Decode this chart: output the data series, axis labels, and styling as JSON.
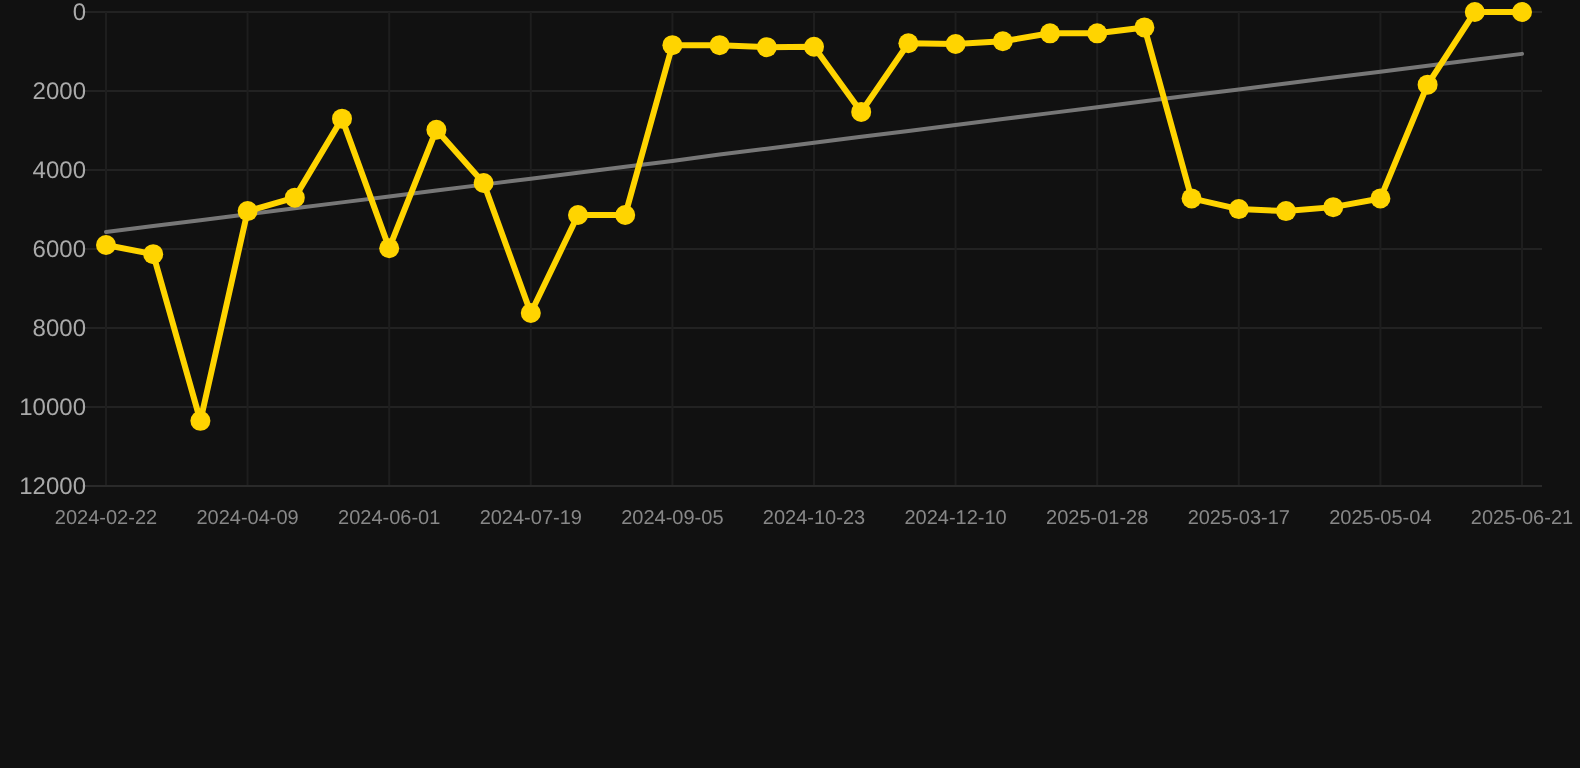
{
  "chart_data": {
    "type": "line",
    "categories": [
      "2024-02-22",
      null,
      null,
      "2024-04-09",
      null,
      null,
      "2024-06-01",
      null,
      null,
      "2024-07-19",
      null,
      null,
      "2024-09-05",
      null,
      null,
      "2024-10-23",
      null,
      null,
      "2024-12-10",
      null,
      null,
      "2025-01-28",
      null,
      null,
      "2025-03-17",
      null,
      null,
      "2025-05-04",
      null,
      null,
      "2025-06-21"
    ],
    "series": [
      {
        "color": "#ffd400",
        "marker": "circle",
        "values": [
          5900,
          6130,
          10350,
          5040,
          4700,
          2700,
          5980,
          2980,
          4330,
          7620,
          5140,
          5140,
          840,
          840,
          890,
          880,
          2530,
          790,
          810,
          740,
          540,
          540,
          390,
          4720,
          4990,
          5040,
          4940,
          4720,
          1840,
          0,
          0
        ]
      },
      {
        "type": "line",
        "color": "#777777",
        "marker": "none",
        "values": [
          5570,
          5420,
          5270,
          5120,
          4970,
          4820,
          4670,
          4520,
          4370,
          4220,
          4070,
          3920,
          3770,
          3610,
          3460,
          3310,
          3160,
          3010,
          2860,
          2710,
          2560,
          2410,
          2260,
          2110,
          1960,
          1810,
          1660,
          1510,
          1360,
          1210,
          1060
        ]
      }
    ],
    "ylim": [
      12000,
      0
    ],
    "yticks": [
      0,
      2000,
      4000,
      6000,
      8000,
      10000,
      12000
    ],
    "grid": true
  }
}
